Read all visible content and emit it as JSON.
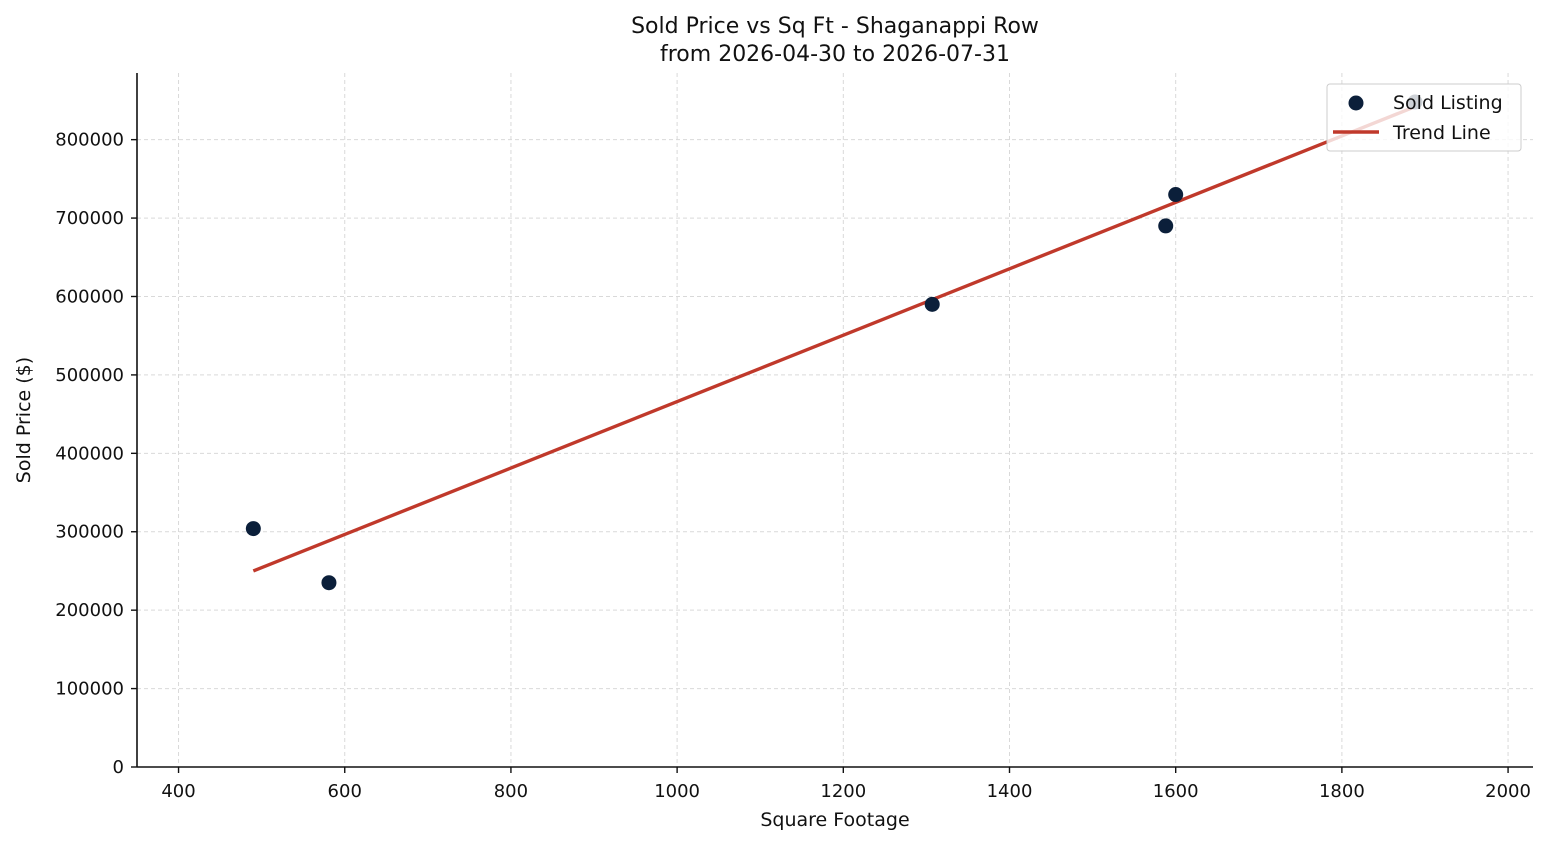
{
  "chart_data": {
    "type": "scatter",
    "title": "Sold Price vs Sq Ft - Shaganappi Row",
    "subtitle": "from 2026-04-30 to 2026-07-31",
    "xlabel": "Square Footage",
    "ylabel": "Sold Price ($)",
    "xlim": [
      350,
      2030
    ],
    "ylim": [
      0,
      885000
    ],
    "x_ticks": [
      400,
      600,
      800,
      1000,
      1200,
      1400,
      1600,
      1800,
      2000
    ],
    "y_ticks": [
      0,
      100000,
      200000,
      300000,
      400000,
      500000,
      600000,
      700000,
      800000
    ],
    "grid": true,
    "legend_position": "top-right",
    "series": [
      {
        "name": "Sold Listing",
        "kind": "scatter",
        "color": "#0b1f3a",
        "points": [
          {
            "x": 490,
            "y": 304000
          },
          {
            "x": 581,
            "y": 235000
          },
          {
            "x": 1307,
            "y": 590000
          },
          {
            "x": 1588,
            "y": 690000
          },
          {
            "x": 1600,
            "y": 730000
          },
          {
            "x": 1888,
            "y": 848000
          }
        ]
      },
      {
        "name": "Trend Line",
        "kind": "line",
        "color": "#c0392b",
        "points": [
          {
            "x": 490,
            "y": 250000
          },
          {
            "x": 1888,
            "y": 842000
          }
        ]
      }
    ]
  }
}
